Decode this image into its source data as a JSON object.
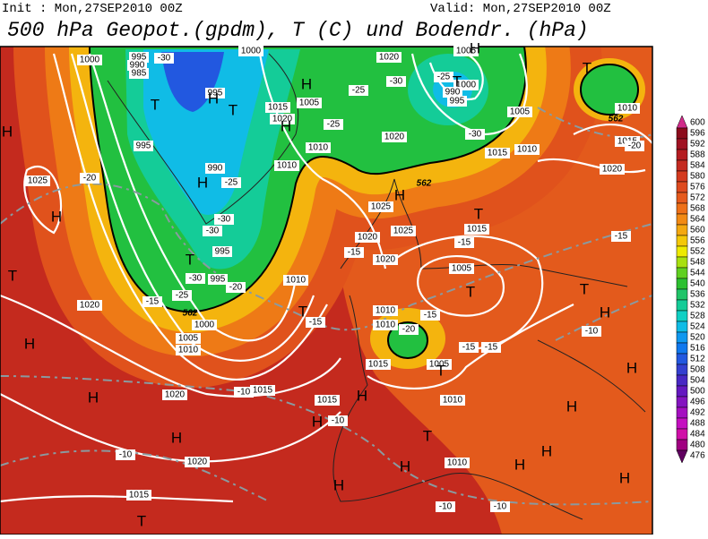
{
  "header": {
    "init": "Init : Mon,27SEP2010 00Z",
    "valid": "Valid: Mon,27SEP2010 00Z",
    "title": "500 hPa Geopot.(gpdm), T (C) und Bodendr. (hPa)"
  },
  "colorbar": {
    "labels": [
      600,
      596,
      592,
      588,
      584,
      580,
      576,
      572,
      568,
      564,
      560,
      556,
      552,
      548,
      544,
      540,
      536,
      532,
      528,
      524,
      520,
      516,
      512,
      508,
      504,
      500,
      496,
      492,
      488,
      484,
      480,
      476
    ],
    "colors": [
      "#d02c8a",
      "#8c0c1c",
      "#a01222",
      "#b41c20",
      "#c42a20",
      "#d43a1e",
      "#de4a1e",
      "#e65a1c",
      "#ee7018",
      "#f28a14",
      "#f4a810",
      "#f4c808",
      "#eeea00",
      "#a8e010",
      "#60d020",
      "#2cc030",
      "#20c468",
      "#14cc98",
      "#10d0c4",
      "#10bce6",
      "#1098f0",
      "#1078ee",
      "#2258e0",
      "#3440d0",
      "#4828c4",
      "#6418c0",
      "#8414c0",
      "#a410c0",
      "#c410c0",
      "#d010a8",
      "#a00080",
      "#600060"
    ]
  },
  "map": {
    "pressure_labels": [
      "1000",
      "995",
      "990",
      "985",
      "995",
      "995",
      "990",
      "995",
      "995",
      "1000",
      "1005",
      "1010",
      "1015",
      "1020",
      "1020",
      "1015",
      "1020",
      "1025",
      "1010",
      "1015",
      "1020",
      "1010",
      "1005",
      "1010",
      "1020",
      "1025",
      "1020",
      "1020",
      "1025",
      "1015",
      "1005",
      "1010",
      "1015",
      "1005",
      "1010",
      "1015",
      "1010",
      "1000",
      "1005",
      "990",
      "995",
      "1005",
      "1010",
      "1015",
      "1010",
      "1015",
      "1020",
      "1020",
      "1000",
      "1010"
    ],
    "temperature_labels": [
      "-30",
      "-25",
      "-30",
      "-25",
      "-30",
      "-25",
      "-30",
      "-30",
      "-30",
      "-25",
      "-20",
      "-15",
      "-20",
      "-15",
      "-15",
      "-15",
      "-15",
      "-15",
      "-15",
      "-20",
      "-15",
      "-20",
      "-10",
      "-10",
      "-10",
      "-10",
      "-10",
      "-10",
      "-25"
    ],
    "highs": [
      "H",
      "H",
      "H",
      "H",
      "H",
      "H",
      "H",
      "H",
      "H",
      "H",
      "H",
      "H",
      "H",
      "H",
      "H",
      "H",
      "H",
      "H",
      "H",
      "H",
      "H"
    ],
    "lows": [
      "T",
      "T",
      "T",
      "T",
      "T",
      "T",
      "T",
      "T",
      "T",
      "T",
      "T",
      "T",
      "T"
    ],
    "contour_labels": [
      "562",
      "562",
      "562"
    ]
  }
}
